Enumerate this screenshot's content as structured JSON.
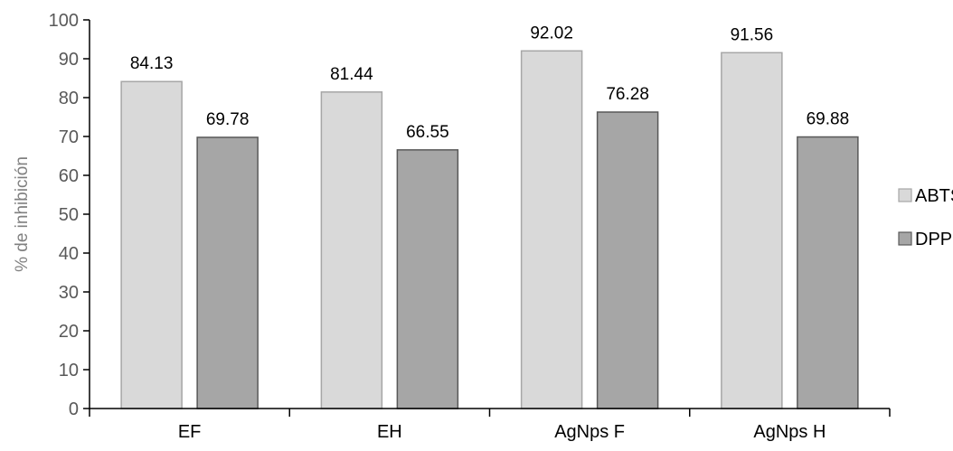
{
  "chart_data": {
    "type": "bar",
    "categories": [
      "EF",
      "EH",
      "AgNps F",
      "AgNps H"
    ],
    "series": [
      {
        "name": "ABTS",
        "values": [
          84.13,
          81.44,
          92.02,
          91.56
        ],
        "color": "#d9d9d9",
        "stroke": "#a6a6a6",
        "data_labels": [
          "84.13",
          "81.44",
          "92.02",
          "91.56"
        ]
      },
      {
        "name": "DPPH",
        "values": [
          69.78,
          66.55,
          76.28,
          69.88
        ],
        "color": "#a6a6a6",
        "stroke": "#595959",
        "data_labels": [
          "69.78",
          "66.55",
          "76.28",
          "69.88"
        ]
      }
    ],
    "ylabel": "%  de inhibición",
    "xlabel": "",
    "ylim": [
      0,
      100
    ],
    "yticks": [
      "0",
      "10",
      "20",
      "30",
      "40",
      "50",
      "60",
      "70",
      "80",
      "90",
      "100"
    ],
    "grid": false,
    "legend_position": "right"
  }
}
